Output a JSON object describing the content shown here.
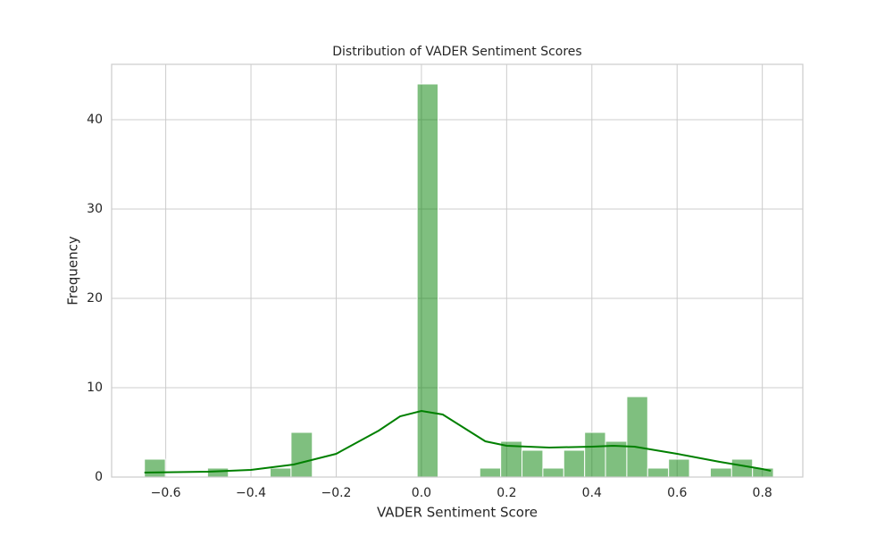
{
  "chart_data": {
    "type": "histogram",
    "title": "Distribution of VADER Sentiment Scores",
    "x_label": "VADER Sentiment Score",
    "y_label": "Frequency",
    "bins": [
      -0.65,
      -0.601,
      -0.552,
      -0.502,
      -0.453,
      -0.404,
      -0.355,
      -0.306,
      -0.256,
      -0.207,
      -0.158,
      -0.109,
      -0.06,
      -0.01,
      0.039,
      0.088,
      0.137,
      0.186,
      0.236,
      0.285,
      0.334,
      0.383,
      0.432,
      0.482,
      0.531,
      0.58,
      0.629,
      0.678,
      0.728,
      0.777,
      0.826
    ],
    "values": [
      2,
      0,
      0,
      1,
      0,
      0,
      1,
      5,
      0,
      0,
      0,
      0,
      0,
      44,
      0,
      0,
      1,
      4,
      3,
      1,
      3,
      5,
      4,
      9,
      1,
      2,
      0,
      1,
      2,
      1
    ],
    "color": "#008000",
    "kde": {
      "color": "#008000",
      "x": [
        -0.65,
        -0.5,
        -0.4,
        -0.3,
        -0.2,
        -0.1,
        -0.05,
        0.0,
        0.05,
        0.1,
        0.15,
        0.2,
        0.3,
        0.4,
        0.45,
        0.5,
        0.6,
        0.7,
        0.8,
        0.82
      ],
      "values": [
        0.5,
        0.6,
        0.8,
        1.4,
        2.6,
        5.2,
        6.8,
        7.4,
        7.0,
        5.5,
        4.0,
        3.5,
        3.3,
        3.4,
        3.5,
        3.4,
        2.6,
        1.7,
        0.9,
        0.7
      ]
    },
    "xlim": [
      -0.727,
      0.895
    ],
    "xticks": [
      {
        "value": -0.6,
        "label": "−0.6"
      },
      {
        "value": -0.4,
        "label": "−0.4"
      },
      {
        "value": -0.2,
        "label": "−0.2"
      },
      {
        "value": 0,
        "label": "0.0"
      },
      {
        "value": 0.2,
        "label": "0.2"
      },
      {
        "value": 0.4,
        "label": "0.4"
      },
      {
        "value": 0.6,
        "label": "0.6"
      },
      {
        "value": 0.8,
        "label": "0.8"
      }
    ],
    "ylim": [
      0,
      46.2
    ],
    "yticks": [
      0,
      10,
      20,
      30,
      40
    ],
    "grid": true
  }
}
